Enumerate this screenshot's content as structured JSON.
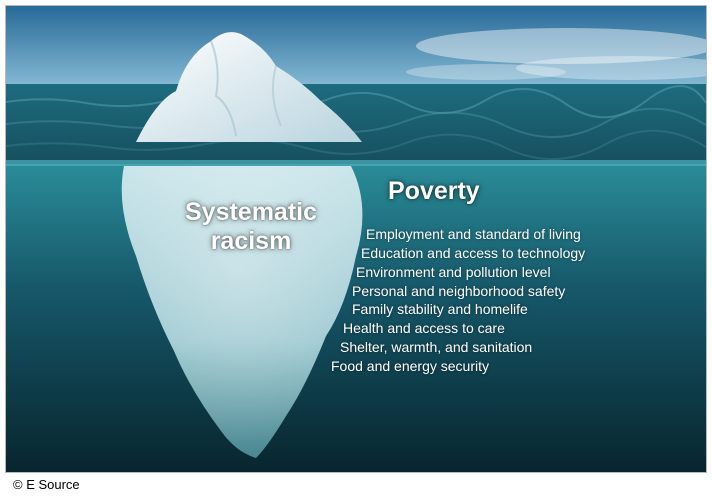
{
  "image": {
    "left_label_lines": [
      "Systematic",
      "racism"
    ],
    "right_title": "Poverty",
    "factors": [
      "Employment and standard of living",
      "Education and access to technology",
      "Environment and pollution level",
      "Personal and neighborhood safety",
      "Family stability and homelife",
      "Health and access to care",
      "Shelter, warmth, and sanitation",
      "Food and energy security"
    ]
  },
  "credit": "© E Source",
  "colors": {
    "sky_top": "#2c6f9c",
    "sky_bottom": "#8dbfd9",
    "water_surface": "#1f6b80",
    "deep_water": "#0b2e38",
    "ice": "#e8f4f7"
  }
}
